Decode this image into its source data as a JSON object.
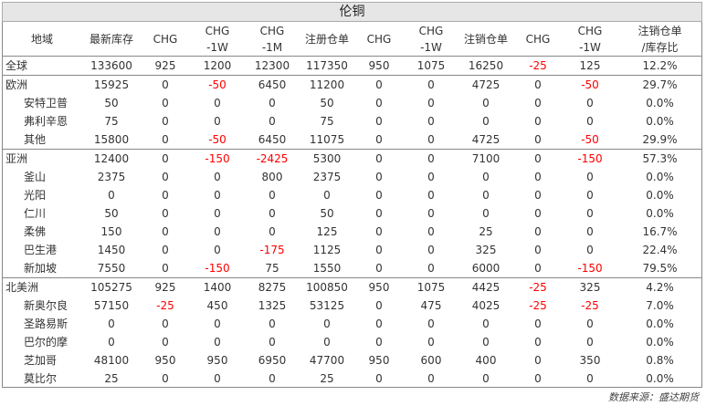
{
  "title": "伦铜",
  "headers": [
    {
      "l1": "地域",
      "l2": ""
    },
    {
      "l1": "最新库存",
      "l2": ""
    },
    {
      "l1": "CHG",
      "l2": ""
    },
    {
      "l1": "CHG",
      "l2": "-1W"
    },
    {
      "l1": "CHG",
      "l2": "-1M"
    },
    {
      "l1": "注册仓单",
      "l2": ""
    },
    {
      "l1": "CHG",
      "l2": ""
    },
    {
      "l1": "CHG",
      "l2": "-1W"
    },
    {
      "l1": "注销仓单",
      "l2": ""
    },
    {
      "l1": "CHG",
      "l2": ""
    },
    {
      "l1": "CHG",
      "l2": "-1W"
    },
    {
      "l1": "注销仓单",
      "l2": "/库存比"
    }
  ],
  "rows": [
    {
      "name": "全球",
      "level": "region",
      "group_start": false,
      "cells": [
        "133600",
        "925",
        "1200",
        "12300",
        "117350",
        "950",
        "1075",
        "16250",
        "-25",
        "125",
        "12.2%"
      ]
    },
    {
      "name": "欧洲",
      "level": "region",
      "group_start": true,
      "cells": [
        "15925",
        "0",
        "-50",
        "6450",
        "11200",
        "0",
        "0",
        "4725",
        "0",
        "-50",
        "29.7%"
      ]
    },
    {
      "name": "安特卫普",
      "level": "sub",
      "group_start": false,
      "cells": [
        "50",
        "0",
        "0",
        "0",
        "50",
        "0",
        "0",
        "0",
        "0",
        "0",
        "0.0%"
      ]
    },
    {
      "name": "弗利辛恩",
      "level": "sub",
      "group_start": false,
      "cells": [
        "75",
        "0",
        "0",
        "0",
        "75",
        "0",
        "0",
        "0",
        "0",
        "0",
        "0.0%"
      ]
    },
    {
      "name": "其他",
      "level": "sub",
      "group_start": false,
      "cells": [
        "15800",
        "0",
        "-50",
        "6450",
        "11075",
        "0",
        "0",
        "4725",
        "0",
        "-50",
        "29.9%"
      ]
    },
    {
      "name": "亚洲",
      "level": "region",
      "group_start": true,
      "cells": [
        "12400",
        "0",
        "-150",
        "-2425",
        "5300",
        "0",
        "0",
        "7100",
        "0",
        "-150",
        "57.3%"
      ]
    },
    {
      "name": "釜山",
      "level": "sub",
      "group_start": false,
      "cells": [
        "2375",
        "0",
        "0",
        "800",
        "2375",
        "0",
        "0",
        "0",
        "0",
        "0",
        "0.0%"
      ]
    },
    {
      "name": "光阳",
      "level": "sub",
      "group_start": false,
      "cells": [
        "0",
        "0",
        "0",
        "0",
        "0",
        "0",
        "0",
        "0",
        "0",
        "0",
        "0.0%"
      ]
    },
    {
      "name": "仁川",
      "level": "sub",
      "group_start": false,
      "cells": [
        "50",
        "0",
        "0",
        "0",
        "50",
        "0",
        "0",
        "0",
        "0",
        "0",
        "0.0%"
      ]
    },
    {
      "name": "柔佛",
      "level": "sub",
      "group_start": false,
      "cells": [
        "150",
        "0",
        "0",
        "0",
        "125",
        "0",
        "0",
        "25",
        "0",
        "0",
        "16.7%"
      ]
    },
    {
      "name": "巴生港",
      "level": "sub",
      "group_start": false,
      "cells": [
        "1450",
        "0",
        "0",
        "-175",
        "1125",
        "0",
        "0",
        "325",
        "0",
        "0",
        "22.4%"
      ]
    },
    {
      "name": "新加坡",
      "level": "sub",
      "group_start": false,
      "cells": [
        "7550",
        "0",
        "-150",
        "75",
        "1550",
        "0",
        "0",
        "6000",
        "0",
        "-150",
        "79.5%"
      ]
    },
    {
      "name": "北美洲",
      "level": "region",
      "group_start": true,
      "cells": [
        "105275",
        "925",
        "1400",
        "8275",
        "100850",
        "950",
        "1075",
        "4425",
        "-25",
        "325",
        "4.2%"
      ]
    },
    {
      "name": "新奥尔良",
      "level": "sub",
      "group_start": false,
      "cells": [
        "57150",
        "-25",
        "450",
        "1325",
        "53125",
        "0",
        "475",
        "4025",
        "-25",
        "-25",
        "7.0%"
      ]
    },
    {
      "name": "圣路易斯",
      "level": "sub",
      "group_start": false,
      "cells": [
        "0",
        "0",
        "0",
        "0",
        "0",
        "0",
        "0",
        "0",
        "0",
        "0",
        "0.0%"
      ]
    },
    {
      "name": "巴尔的摩",
      "level": "sub",
      "group_start": false,
      "cells": [
        "0",
        "0",
        "0",
        "0",
        "0",
        "0",
        "0",
        "0",
        "0",
        "0",
        "0.0%"
      ]
    },
    {
      "name": "芝加哥",
      "level": "sub",
      "group_start": false,
      "cells": [
        "48100",
        "950",
        "950",
        "6950",
        "47700",
        "950",
        "600",
        "400",
        "0",
        "350",
        "0.8%"
      ]
    },
    {
      "name": "莫比尔",
      "level": "sub",
      "group_start": false,
      "cells": [
        "25",
        "0",
        "0",
        "0",
        "25",
        "0",
        "0",
        "0",
        "0",
        "0",
        "0.0%"
      ]
    }
  ],
  "source": "数据来源：盛达期货",
  "colors": {
    "negative": "#ff0000",
    "title_bg": "#e6e6e6"
  }
}
